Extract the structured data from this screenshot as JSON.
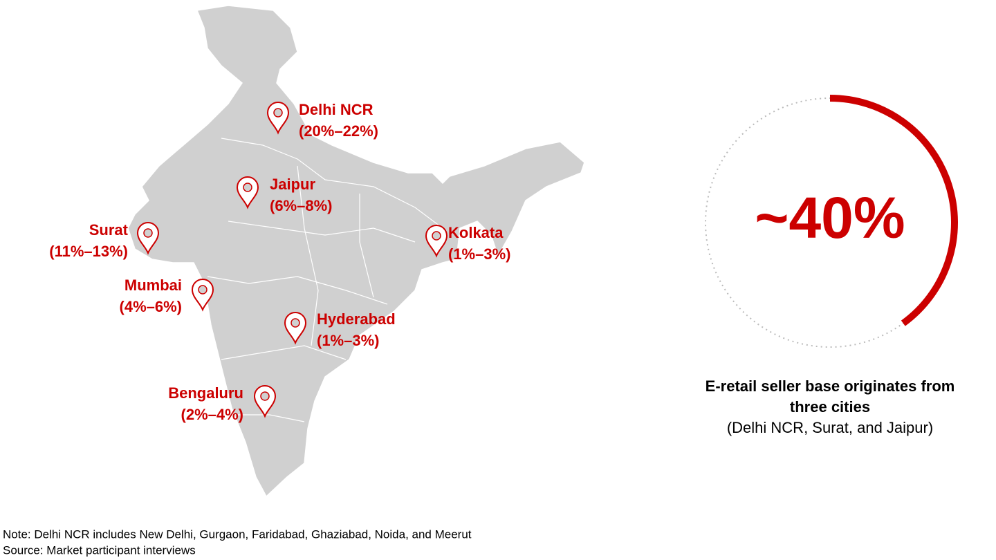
{
  "cities": [
    {
      "name": "Delhi NCR",
      "share": "(20%–22%)"
    },
    {
      "name": "Jaipur",
      "share": "(6%–8%)"
    },
    {
      "name": "Surat",
      "share": "(11%–13%)"
    },
    {
      "name": "Mumbai",
      "share": "(4%–6%)"
    },
    {
      "name": "Kolkata",
      "share": "(1%–3%)"
    },
    {
      "name": "Hyderabad",
      "share": "(1%–3%)"
    },
    {
      "name": "Bengaluru",
      "share": "(2%–4%)"
    }
  ],
  "highlight": {
    "value": 40,
    "label": "~40%"
  },
  "caption": {
    "title_lines": [
      "E-retail seller base originates from",
      "three cities"
    ],
    "detail": "(Delhi NCR, Surat, and Jaipur)"
  },
  "note": "Note: Delhi NCR includes New Delhi, Gurgaon, Faridabad, Ghaziabad, Noida, and Meerut",
  "source": "Source: Market participant interviews"
}
